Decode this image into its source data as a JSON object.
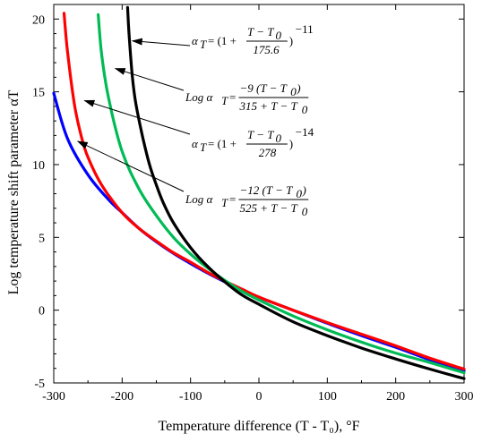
{
  "chart_data": {
    "type": "line",
    "xlabel": "Temperature difference (T - T₀), °F",
    "ylabel": "Log temperature shift parameter αT",
    "xlim": [
      -300,
      300
    ],
    "ylim": [
      -5,
      21
    ],
    "xticks": [
      "-300",
      "-200",
      "-100",
      "0",
      "100",
      "200",
      "300"
    ],
    "yticks": [
      "-5",
      "0",
      "5",
      "10",
      "15",
      "20"
    ],
    "xticks_values": [
      -300,
      -200,
      -100,
      0,
      100,
      200,
      300
    ],
    "yticks_values": [
      -5,
      0,
      5,
      10,
      15,
      20
    ],
    "grid": false,
    "series": [
      {
        "color": "#0000ff",
        "x": [
          -300,
          -280,
          -250,
          -220,
          -200,
          -175,
          -150,
          -125,
          -100,
          -75,
          -50,
          -25,
          0,
          50,
          100,
          150,
          200,
          250,
          300
        ],
        "y": [
          14.9,
          11.8,
          9.3,
          7.6,
          6.7,
          5.6,
          4.7,
          3.9,
          3.2,
          2.55,
          1.95,
          1.4,
          0.88,
          0.0,
          -0.9,
          -1.75,
          -2.55,
          -3.4,
          -4.15
        ]
      },
      {
        "color": "#ff0000",
        "x": [
          -285,
          -280,
          -270,
          -260,
          -250,
          -230,
          -200,
          -175,
          -150,
          -125,
          -100,
          -75,
          -50,
          -25,
          0,
          50,
          100,
          150,
          200,
          250,
          300
        ],
        "y": [
          20.4,
          17.8,
          14.2,
          12.0,
          10.5,
          8.6,
          6.7,
          5.6,
          4.75,
          3.95,
          3.3,
          2.6,
          2.0,
          1.45,
          0.9,
          0.0,
          -0.85,
          -1.65,
          -2.45,
          -3.3,
          -4.05
        ]
      },
      {
        "color": "#00bb55",
        "x": [
          -235,
          -230,
          -220,
          -200,
          -175,
          -150,
          -125,
          -100,
          -75,
          -50,
          -25,
          0,
          50,
          100,
          150,
          200,
          250,
          300
        ],
        "y": [
          20.3,
          17.6,
          14.6,
          10.9,
          8.3,
          6.5,
          5.0,
          3.85,
          2.9,
          2.05,
          1.3,
          0.7,
          -0.4,
          -1.35,
          -2.2,
          -2.95,
          -3.6,
          -4.3
        ]
      },
      {
        "color": "#000000",
        "x": [
          -192,
          -190,
          -185,
          -180,
          -170,
          -160,
          -150,
          -140,
          -125,
          -100,
          -75,
          -50,
          -25,
          0,
          50,
          100,
          150,
          200,
          250,
          300
        ],
        "y": [
          20.8,
          19.0,
          16.0,
          14.2,
          11.9,
          10.0,
          8.6,
          7.4,
          6.0,
          4.3,
          3.0,
          1.95,
          1.05,
          0.4,
          -0.8,
          -1.75,
          -2.6,
          -3.35,
          -4.05,
          -4.7
        ]
      }
    ],
    "annotations": [
      {
        "lhs": "α",
        "lhs_sub": "T",
        "open": "= (1 +",
        "num": "T − T",
        "num_sub": "0",
        "den": "175.6",
        "close": ")",
        "exp": "−11",
        "arrow_to": [
          -185,
          18.5
        ]
      },
      {
        "lhs": "Log α",
        "lhs_sub": "T",
        "open": "=",
        "num": "−9 (T − T",
        "num_sub": "0",
        "num_tail": ")",
        "den": "315 + T − T",
        "den_sub": "0",
        "close": "",
        "exp": "",
        "arrow_to": [
          -210,
          16.6
        ]
      },
      {
        "lhs": "α",
        "lhs_sub": "T",
        "open": "= (1 +",
        "num": "T − T",
        "num_sub": "0",
        "den": "278",
        "close": ")",
        "exp": "−14",
        "arrow_to": [
          -255,
          14.4
        ]
      },
      {
        "lhs": "Log α",
        "lhs_sub": "T",
        "open": "=",
        "num": "−12 (T − T",
        "num_sub": "0",
        "num_tail": ")",
        "den": "525 + T − T",
        "den_sub": "0",
        "close": "",
        "exp": "",
        "arrow_to": [
          -265,
          11.6
        ]
      }
    ]
  }
}
